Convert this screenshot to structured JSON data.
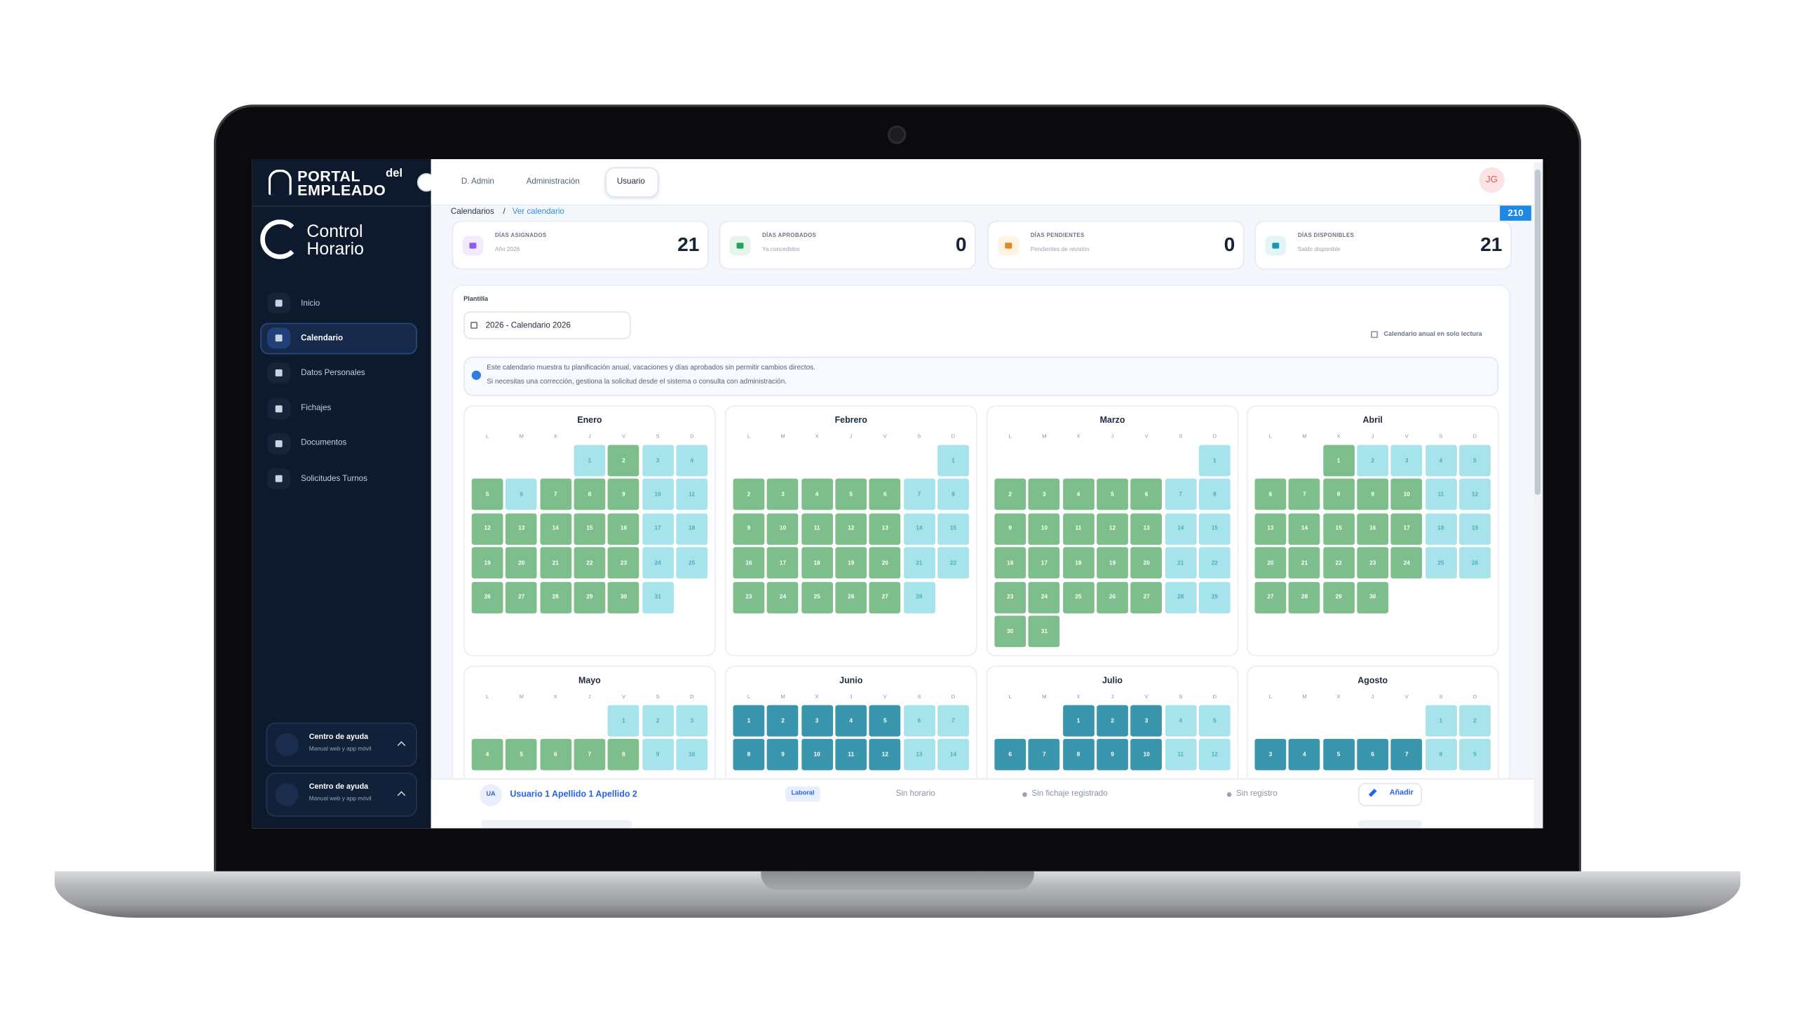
{
  "sidebar": {
    "logo": {
      "word1": "PORTAL",
      "word2": "del",
      "word3": "EMPLEADO"
    },
    "app": {
      "line1": "Control",
      "line2": "Horario"
    },
    "nav": [
      {
        "label": "Inicio",
        "active": false
      },
      {
        "label": "Calendario",
        "active": true
      },
      {
        "label": "Datos Personales",
        "active": false
      },
      {
        "label": "Fichajes",
        "active": false
      },
      {
        "label": "Documentos",
        "active": false
      },
      {
        "label": "Solicitudes Turnos",
        "active": false
      }
    ],
    "help": [
      {
        "title": "Centro de ayuda",
        "subtitle": "Manual web y app móvil"
      },
      {
        "title": "Centro de ayuda",
        "subtitle": "Manual web y app móvil"
      }
    ]
  },
  "topbar": {
    "tabs": [
      {
        "label": "D. Admin",
        "active": false
      },
      {
        "label": "Administración",
        "active": false
      },
      {
        "label": "Usuario",
        "active": true
      }
    ],
    "avatar": "JG"
  },
  "breadcrumb": {
    "items": [
      "Calendarios",
      "Ver calendario"
    ],
    "separator": "/"
  },
  "badge": 210,
  "stats": [
    {
      "label": "DÍAS ASIGNADOS",
      "sub": "Año 2026",
      "value": 21,
      "color": "#8b5cf6",
      "bg": "#f1ebfd"
    },
    {
      "label": "DÍAS APROBADOS",
      "sub": "Ya concedidos",
      "value": 0,
      "color": "#22a35a",
      "bg": "#e6f6ec"
    },
    {
      "label": "DÍAS PENDIENTES",
      "sub": "Pendientes de revisión",
      "value": 0,
      "color": "#e08a1e",
      "bg": "#fff3e2"
    },
    {
      "label": "DÍAS DISPONIBLES",
      "sub": "Saldo disponible",
      "value": 21,
      "color": "#1e9aa5",
      "bg": "#e3f5f6"
    }
  ],
  "calendar": {
    "template_label": "Plantilla",
    "template": "2026 - Calendario 2026",
    "readonly": "Calendario anual en solo lectura",
    "info": [
      "Este calendario muestra tu planificación anual, vacaciones y días aprobados sin permitir cambios directos.",
      "Si necesitas una corrección, gestiona la solicitud desde el sistema o consulta con administración."
    ],
    "weekdays": [
      "L",
      "M",
      "X",
      "J",
      "V",
      "S",
      "D"
    ],
    "palette": {
      "g": "#7dbe8c",
      "l": "#a7e3ea",
      "t": "#3a96ad"
    },
    "months": [
      {
        "name": "Enero",
        "weeks": [
          [
            null,
            null,
            null,
            1,
            2,
            3,
            4
          ],
          [
            5,
            6,
            7,
            8,
            9,
            10,
            11
          ],
          [
            12,
            13,
            14,
            15,
            16,
            17,
            18
          ],
          [
            19,
            20,
            21,
            22,
            23,
            24,
            25
          ],
          [
            26,
            27,
            28,
            29,
            30,
            31,
            null
          ]
        ],
        "kinds": [
          "___lgll",
          "glgggll",
          "gggggll",
          "gggggll",
          "gggggl_"
        ]
      },
      {
        "name": "Febrero",
        "weeks": [
          [
            null,
            null,
            null,
            null,
            null,
            null,
            1
          ],
          [
            2,
            3,
            4,
            5,
            6,
            7,
            8
          ],
          [
            9,
            10,
            11,
            12,
            13,
            14,
            15
          ],
          [
            16,
            17,
            18,
            19,
            20,
            21,
            22
          ],
          [
            23,
            24,
            25,
            26,
            27,
            28,
            null
          ]
        ],
        "kinds": [
          "______l",
          "gggggll",
          "gggggll",
          "gggggll",
          "gggggl_"
        ]
      },
      {
        "name": "Marzo",
        "weeks": [
          [
            null,
            null,
            null,
            null,
            null,
            null,
            1
          ],
          [
            2,
            3,
            4,
            5,
            6,
            7,
            8
          ],
          [
            9,
            10,
            11,
            12,
            13,
            14,
            15
          ],
          [
            16,
            17,
            18,
            19,
            20,
            21,
            22
          ],
          [
            23,
            24,
            25,
            26,
            27,
            28,
            29
          ],
          [
            30,
            31,
            null,
            null,
            null,
            null,
            null
          ]
        ],
        "kinds": [
          "______l",
          "gggggll",
          "gggggll",
          "gggggll",
          "gggggll",
          "gg_____"
        ]
      },
      {
        "name": "Abril",
        "weeks": [
          [
            null,
            null,
            1,
            2,
            3,
            4,
            5
          ],
          [
            6,
            7,
            8,
            9,
            10,
            11,
            12
          ],
          [
            13,
            14,
            15,
            16,
            17,
            18,
            19
          ],
          [
            20,
            21,
            22,
            23,
            24,
            25,
            26
          ],
          [
            27,
            28,
            29,
            30,
            null,
            null,
            null
          ]
        ],
        "kinds": [
          "__gllll",
          "gggggll",
          "gggggll",
          "gggggll",
          "gggg___"
        ]
      },
      {
        "name": "Mayo",
        "weeks": [
          [
            null,
            null,
            null,
            null,
            1,
            2,
            3
          ],
          [
            4,
            5,
            6,
            7,
            8,
            9,
            10
          ]
        ],
        "kinds": [
          "____lll",
          "gggggll"
        ]
      },
      {
        "name": "Junio",
        "weeks": [
          [
            1,
            2,
            3,
            4,
            5,
            6,
            7
          ],
          [
            8,
            9,
            10,
            11,
            12,
            13,
            14
          ]
        ],
        "kinds": [
          "tttttll",
          "tttttll"
        ]
      },
      {
        "name": "Julio",
        "weeks": [
          [
            null,
            null,
            1,
            2,
            3,
            4,
            5
          ],
          [
            6,
            7,
            8,
            9,
            10,
            11,
            12
          ]
        ],
        "kinds": [
          "__tttll",
          "tttttll"
        ]
      },
      {
        "name": "Agosto",
        "weeks": [
          [
            null,
            null,
            null,
            null,
            null,
            1,
            2
          ],
          [
            3,
            4,
            5,
            6,
            7,
            8,
            9
          ]
        ],
        "kinds": [
          "_____ll",
          "tttttll"
        ]
      }
    ]
  },
  "employee_row": {
    "initials": "UA",
    "name": "Usuario 1 Apellido 1 Apellido 2",
    "tag": "Laboral",
    "schedule": "Sin horario",
    "clock": "Sin fichaje registrado",
    "record": "Sin registro",
    "action": "Añadir"
  }
}
